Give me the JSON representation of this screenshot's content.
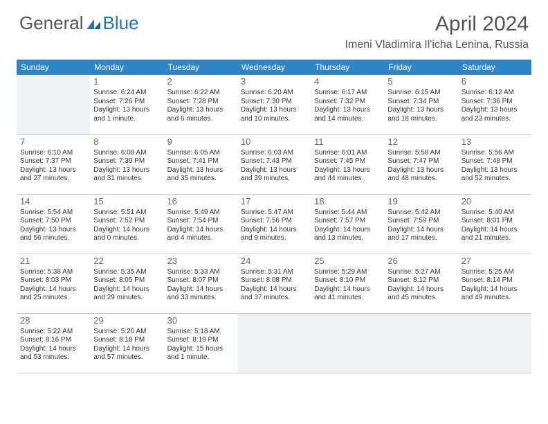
{
  "logo": {
    "general": "General",
    "blue": "Blue"
  },
  "title": "April 2024",
  "location": "Imeni Vladimira Il'icha Lenina, Russia",
  "colors": {
    "header_bg": "#2f86c7",
    "header_fg": "#ffffff",
    "shaded_bg": "#eef1f3",
    "border": "#cccccc",
    "text": "#333333",
    "title_color": "#555555",
    "logo_blue": "#2774bd"
  },
  "dayNames": [
    "Sunday",
    "Monday",
    "Tuesday",
    "Wednesday",
    "Thursday",
    "Friday",
    "Saturday"
  ],
  "weeks": [
    [
      null,
      {
        "d": "1",
        "sr": "6:24 AM",
        "ss": "7:26 PM",
        "dl": "13 hours and 1 minute."
      },
      {
        "d": "2",
        "sr": "6:22 AM",
        "ss": "7:28 PM",
        "dl": "13 hours and 6 minutes."
      },
      {
        "d": "3",
        "sr": "6:20 AM",
        "ss": "7:30 PM",
        "dl": "13 hours and 10 minutes."
      },
      {
        "d": "4",
        "sr": "6:17 AM",
        "ss": "7:32 PM",
        "dl": "13 hours and 14 minutes."
      },
      {
        "d": "5",
        "sr": "6:15 AM",
        "ss": "7:34 PM",
        "dl": "13 hours and 18 minutes."
      },
      {
        "d": "6",
        "sr": "6:12 AM",
        "ss": "7:36 PM",
        "dl": "13 hours and 23 minutes."
      }
    ],
    [
      {
        "d": "7",
        "sr": "6:10 AM",
        "ss": "7:37 PM",
        "dl": "13 hours and 27 minutes."
      },
      {
        "d": "8",
        "sr": "6:08 AM",
        "ss": "7:39 PM",
        "dl": "13 hours and 31 minutes."
      },
      {
        "d": "9",
        "sr": "6:05 AM",
        "ss": "7:41 PM",
        "dl": "13 hours and 35 minutes."
      },
      {
        "d": "10",
        "sr": "6:03 AM",
        "ss": "7:43 PM",
        "dl": "13 hours and 39 minutes."
      },
      {
        "d": "11",
        "sr": "6:01 AM",
        "ss": "7:45 PM",
        "dl": "13 hours and 44 minutes."
      },
      {
        "d": "12",
        "sr": "5:58 AM",
        "ss": "7:47 PM",
        "dl": "13 hours and 48 minutes."
      },
      {
        "d": "13",
        "sr": "5:56 AM",
        "ss": "7:48 PM",
        "dl": "13 hours and 52 minutes."
      }
    ],
    [
      {
        "d": "14",
        "sr": "5:54 AM",
        "ss": "7:50 PM",
        "dl": "13 hours and 56 minutes."
      },
      {
        "d": "15",
        "sr": "5:51 AM",
        "ss": "7:52 PM",
        "dl": "14 hours and 0 minutes."
      },
      {
        "d": "16",
        "sr": "5:49 AM",
        "ss": "7:54 PM",
        "dl": "14 hours and 4 minutes."
      },
      {
        "d": "17",
        "sr": "5:47 AM",
        "ss": "7:56 PM",
        "dl": "14 hours and 9 minutes."
      },
      {
        "d": "18",
        "sr": "5:44 AM",
        "ss": "7:57 PM",
        "dl": "14 hours and 13 minutes."
      },
      {
        "d": "19",
        "sr": "5:42 AM",
        "ss": "7:59 PM",
        "dl": "14 hours and 17 minutes."
      },
      {
        "d": "20",
        "sr": "5:40 AM",
        "ss": "8:01 PM",
        "dl": "14 hours and 21 minutes."
      }
    ],
    [
      {
        "d": "21",
        "sr": "5:38 AM",
        "ss": "8:03 PM",
        "dl": "14 hours and 25 minutes."
      },
      {
        "d": "22",
        "sr": "5:35 AM",
        "ss": "8:05 PM",
        "dl": "14 hours and 29 minutes."
      },
      {
        "d": "23",
        "sr": "5:33 AM",
        "ss": "8:07 PM",
        "dl": "14 hours and 33 minutes."
      },
      {
        "d": "24",
        "sr": "5:31 AM",
        "ss": "8:08 PM",
        "dl": "14 hours and 37 minutes."
      },
      {
        "d": "25",
        "sr": "5:29 AM",
        "ss": "8:10 PM",
        "dl": "14 hours and 41 minutes."
      },
      {
        "d": "26",
        "sr": "5:27 AM",
        "ss": "8:12 PM",
        "dl": "14 hours and 45 minutes."
      },
      {
        "d": "27",
        "sr": "5:25 AM",
        "ss": "8:14 PM",
        "dl": "14 hours and 49 minutes."
      }
    ],
    [
      {
        "d": "28",
        "sr": "5:22 AM",
        "ss": "8:16 PM",
        "dl": "14 hours and 53 minutes."
      },
      {
        "d": "29",
        "sr": "5:20 AM",
        "ss": "8:18 PM",
        "dl": "14 hours and 57 minutes."
      },
      {
        "d": "30",
        "sr": "5:18 AM",
        "ss": "8:19 PM",
        "dl": "15 hours and 1 minute."
      },
      null,
      null,
      null,
      null
    ]
  ],
  "labels": {
    "sunrise": "Sunrise:",
    "sunset": "Sunset:",
    "daylight": "Daylight:"
  }
}
